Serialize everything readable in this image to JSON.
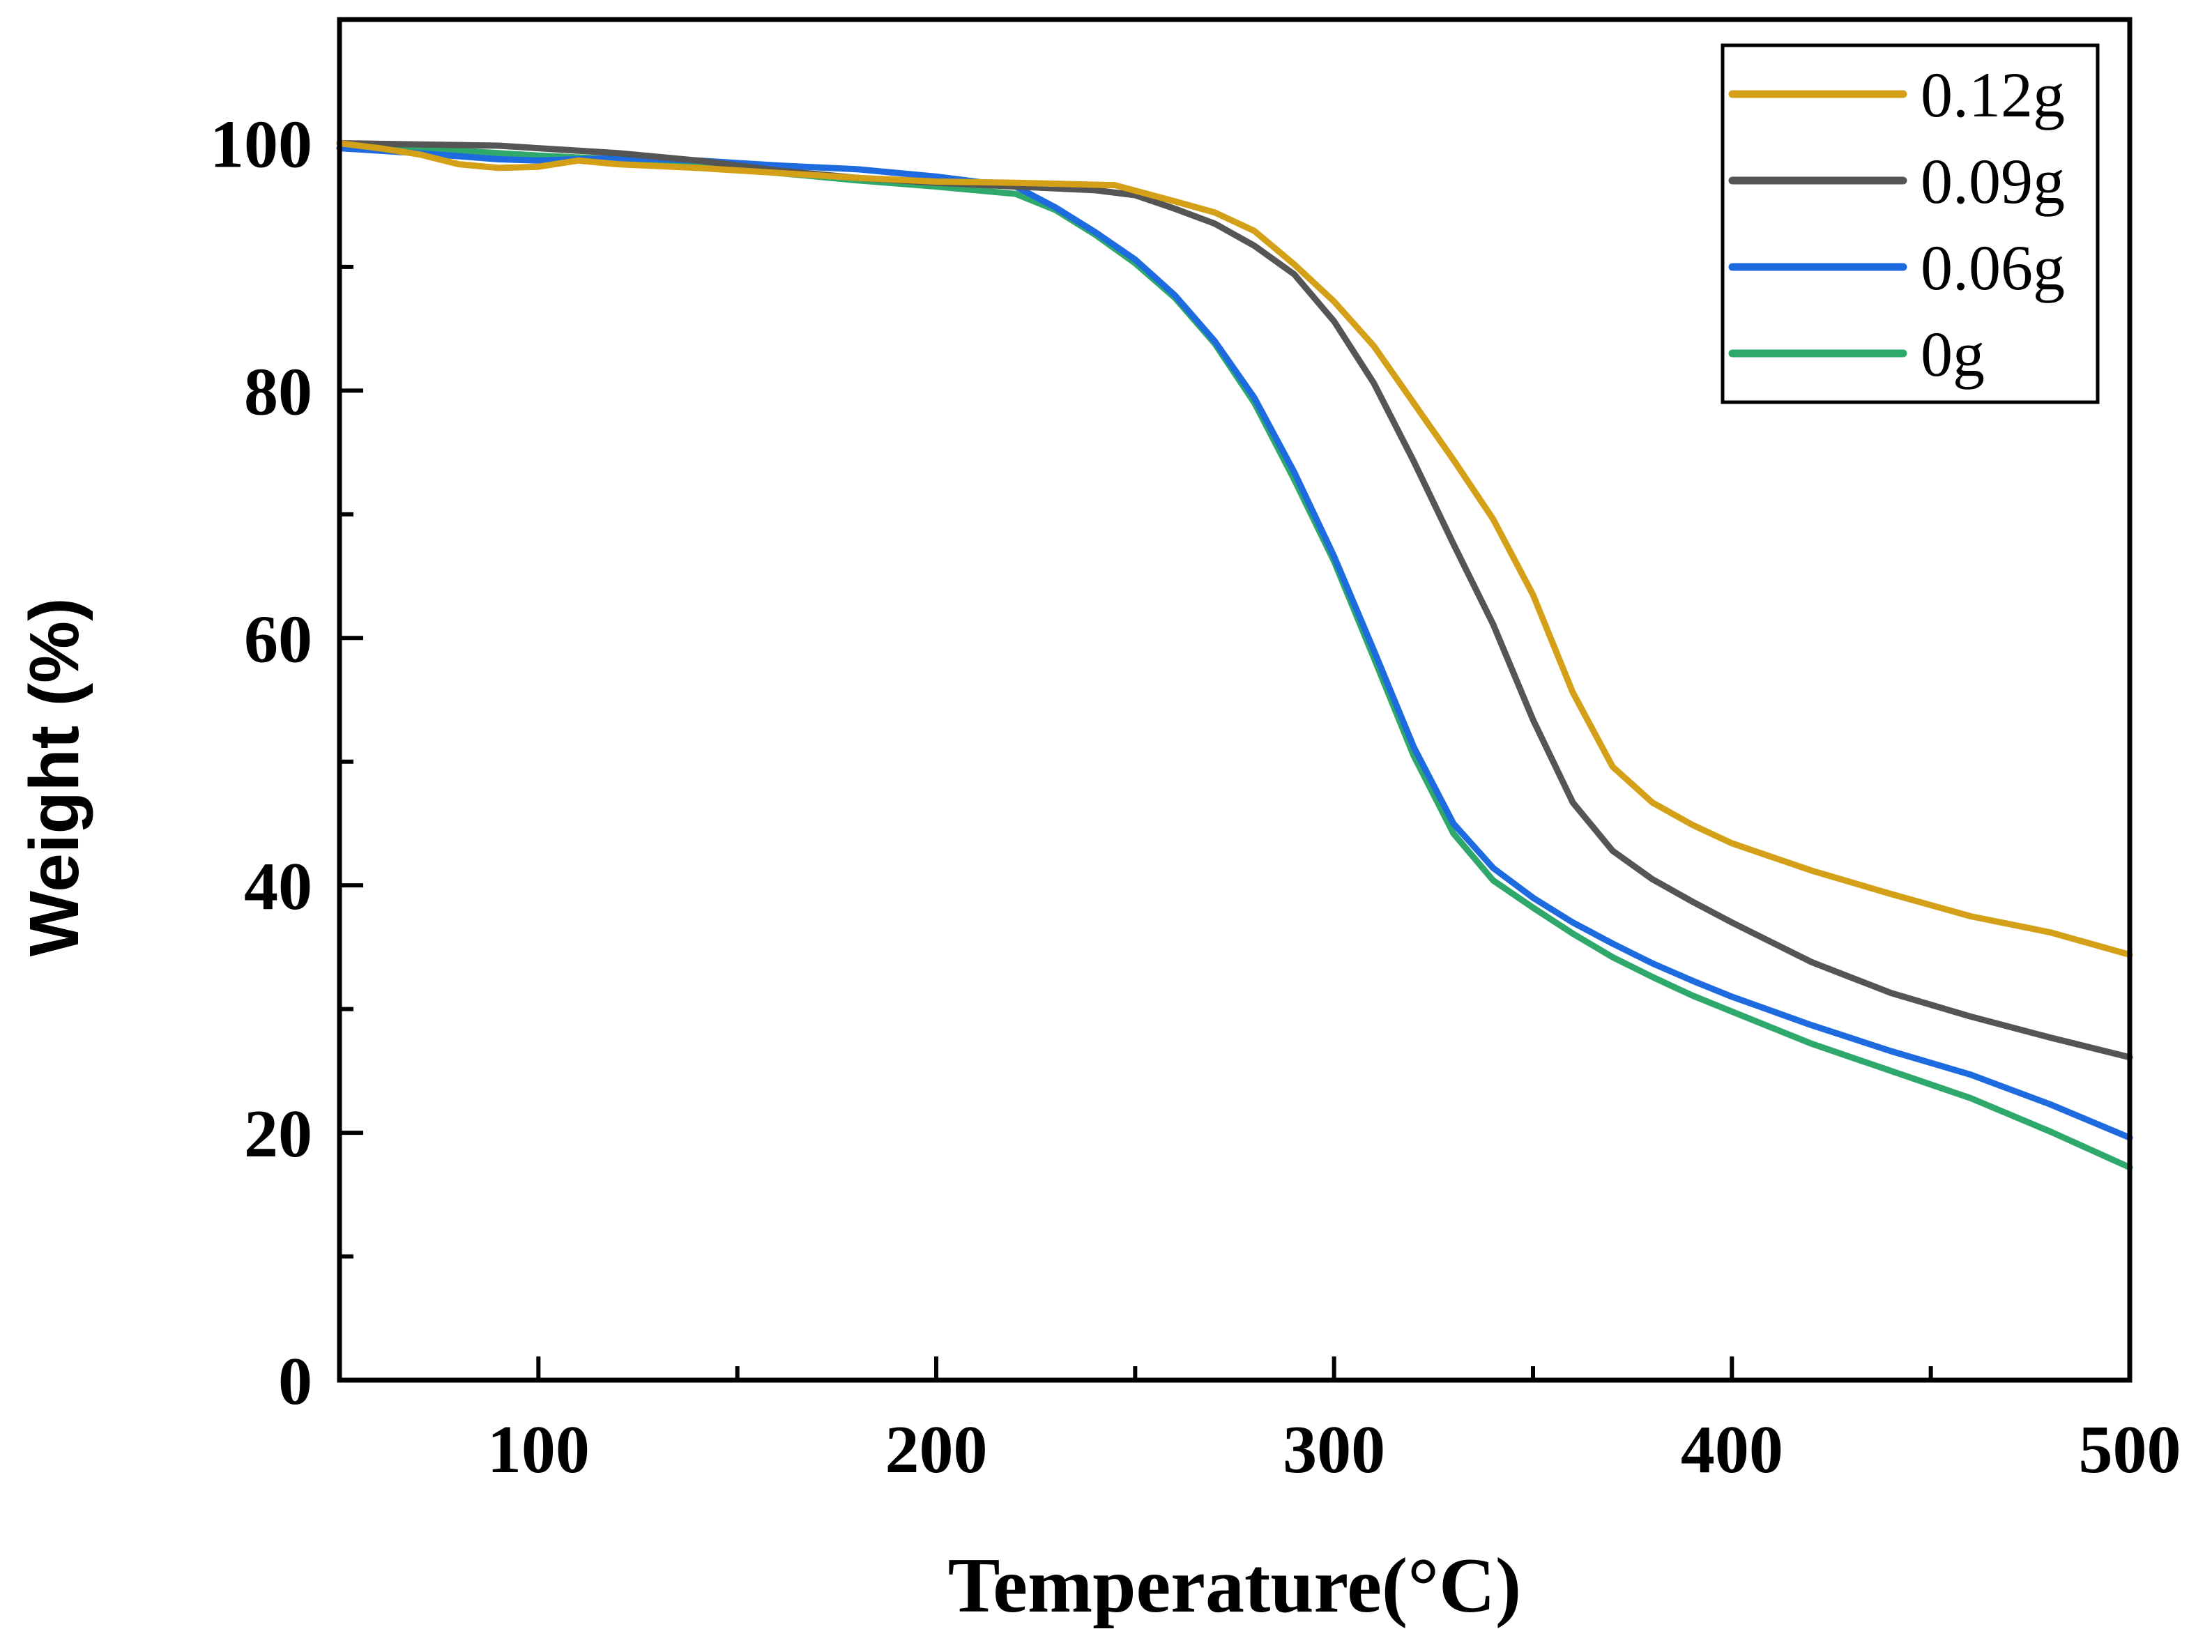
{
  "chart_data": {
    "type": "line",
    "title": "",
    "xlabel": "Temperature(°C)",
    "ylabel": "Weight (%)",
    "xlim": [
      50,
      500
    ],
    "ylim": [
      0,
      110
    ],
    "xticks": [
      100,
      200,
      300,
      400,
      500
    ],
    "yticks": [
      0,
      20,
      40,
      60,
      80,
      100
    ],
    "grid": false,
    "legend_position": "top-right",
    "series": [
      {
        "name": "0.12g",
        "color": "#D4A017",
        "x": [
          50,
          60,
          70,
          80,
          90,
          100,
          110,
          120,
          140,
          160,
          180,
          200,
          220,
          245,
          260,
          270,
          280,
          290,
          300,
          310,
          320,
          330,
          340,
          350,
          360,
          370,
          380,
          390,
          400,
          420,
          440,
          460,
          480,
          500
        ],
        "y": [
          100,
          99.6,
          99.1,
          98.3,
          98.0,
          98.1,
          98.6,
          98.3,
          98.0,
          97.6,
          97.2,
          96.9,
          96.8,
          96.6,
          95.3,
          94.4,
          92.9,
          90.2,
          87.2,
          83.6,
          79.0,
          74.4,
          69.6,
          63.5,
          55.6,
          49.6,
          46.7,
          44.9,
          43.4,
          41.2,
          39.3,
          37.5,
          36.2,
          34.4
        ]
      },
      {
        "name": "0.09g",
        "color": "#555555",
        "x": [
          50,
          70,
          90,
          100,
          120,
          140,
          160,
          180,
          200,
          220,
          240,
          250,
          260,
          270,
          280,
          290,
          300,
          310,
          320,
          330,
          340,
          350,
          360,
          370,
          380,
          390,
          400,
          420,
          440,
          460,
          480,
          500
        ],
        "y": [
          100,
          99.9,
          99.8,
          99.6,
          99.2,
          98.6,
          97.8,
          97.2,
          96.8,
          96.5,
          96.2,
          95.8,
          94.7,
          93.5,
          91.7,
          89.4,
          85.6,
          80.6,
          74.3,
          67.6,
          61.1,
          53.4,
          46.7,
          42.8,
          40.5,
          38.7,
          37.0,
          33.8,
          31.3,
          29.4,
          27.7,
          26.1
        ]
      },
      {
        "name": "0.06g",
        "color": "#1E6BE0",
        "x": [
          50,
          70,
          90,
          100,
          120,
          140,
          160,
          180,
          200,
          220,
          230,
          240,
          250,
          260,
          270,
          280,
          290,
          300,
          310,
          320,
          330,
          340,
          350,
          360,
          370,
          380,
          390,
          400,
          420,
          440,
          460,
          480,
          500
        ],
        "y": [
          99.6,
          99.2,
          98.7,
          98.6,
          98.8,
          98.6,
          98.2,
          97.9,
          97.3,
          96.5,
          94.8,
          92.8,
          90.6,
          87.7,
          84.0,
          79.4,
          73.4,
          66.6,
          59.0,
          51.2,
          45.0,
          41.4,
          39.0,
          37.0,
          35.3,
          33.7,
          32.3,
          31.0,
          28.7,
          26.6,
          24.7,
          22.3,
          19.6
        ]
      },
      {
        "name": "0g",
        "color": "#2FA86B",
        "x": [
          50,
          70,
          90,
          100,
          120,
          140,
          160,
          180,
          200,
          220,
          230,
          240,
          250,
          260,
          270,
          280,
          290,
          300,
          310,
          320,
          330,
          340,
          350,
          360,
          370,
          380,
          390,
          400,
          420,
          440,
          460,
          480,
          500
        ],
        "y": [
          100,
          99.6,
          99.2,
          99.0,
          98.7,
          98.2,
          97.6,
          97.0,
          96.5,
          95.9,
          94.6,
          92.6,
          90.3,
          87.5,
          83.8,
          79.0,
          72.8,
          66.2,
          58.4,
          50.5,
          44.2,
          40.4,
          38.2,
          36.1,
          34.2,
          32.6,
          31.1,
          29.8,
          27.2,
          25.0,
          22.8,
          20.1,
          17.2
        ]
      }
    ]
  }
}
